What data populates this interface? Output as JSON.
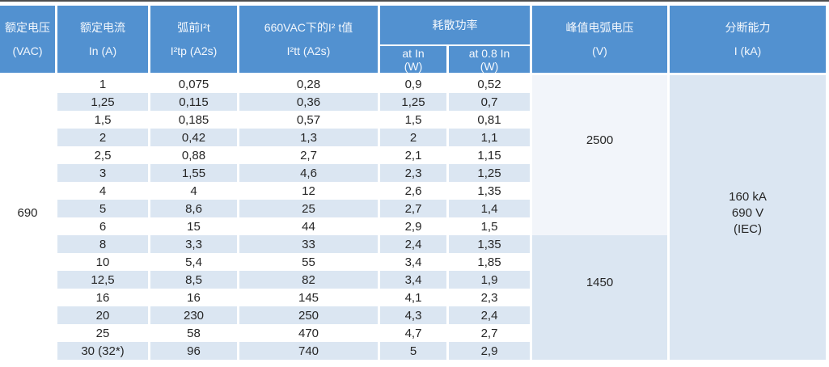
{
  "header": {
    "rated_voltage": {
      "l1": "额定电压",
      "l2": "(VAC)"
    },
    "rated_current": {
      "l1": "额定电流",
      "l2": "In (A)"
    },
    "prearc": {
      "l1": "弧前I²t",
      "l2": "I²tp (A2s)"
    },
    "vac660": {
      "l1": "660VAC下的I² t值",
      "l2": "I²tt (A2s)"
    },
    "power": {
      "label": "耗散功率"
    },
    "power_at_in": {
      "l1": "at In",
      "l2": "(W)"
    },
    "power_at_08in": {
      "l1": "at 0.8 In",
      "l2": "(W)"
    },
    "peak_arc": {
      "l1": "峰值电弧电压",
      "l2": "(V)"
    },
    "breaking": {
      "l1": "分断能力",
      "l2": "I (kA)"
    }
  },
  "body": {
    "rated_voltage": "690",
    "peak_2500": "2500",
    "peak_1450": "1450",
    "breaking": {
      "l1": "160 kA",
      "l2": "690 V",
      "l3": "(IEC)"
    },
    "rows": [
      [
        "1",
        "0,075",
        "0,28",
        "0,9",
        "0,52"
      ],
      [
        "1,25",
        "0,115",
        "0,36",
        "1,25",
        "0,7"
      ],
      [
        "1,5",
        "0,185",
        "0,57",
        "1,5",
        "0,81"
      ],
      [
        "2",
        "0,42",
        "1,3",
        "2",
        "1,1"
      ],
      [
        "2,5",
        "0,88",
        "2,7",
        "2,1",
        "1,15"
      ],
      [
        "3",
        "1,55",
        "4,6",
        "2,3",
        "1,25"
      ],
      [
        "4",
        "4",
        "12",
        "2,6",
        "1,35"
      ],
      [
        "5",
        "8,6",
        "25",
        "2,7",
        "1,4"
      ],
      [
        "6",
        "15",
        "44",
        "2,9",
        "1,5"
      ],
      [
        "8",
        "3,3",
        "33",
        "2,4",
        "1,35"
      ],
      [
        "10",
        "5,4",
        "55",
        "3,4",
        "1,85"
      ],
      [
        "12,5",
        "8,5",
        "82",
        "3,4",
        "1,9"
      ],
      [
        "16",
        "16",
        "145",
        "4,1",
        "2,3"
      ],
      [
        "20",
        "230",
        "250",
        "4,3",
        "2,4"
      ],
      [
        "25",
        "58",
        "470",
        "4,7",
        "2,7"
      ],
      [
        "30 (32*)",
        "96",
        "740",
        "5",
        "2,9"
      ]
    ]
  },
  "colors": {
    "header_bg": "#5291d0",
    "header_text": "#f4f8fd",
    "stripe": "#dbe6f2",
    "peak_upper_cell": "#f2f5fa",
    "spanned_cell": "#dbe6f2",
    "top_line": "#4d4d4d",
    "body_text": "#262626"
  }
}
